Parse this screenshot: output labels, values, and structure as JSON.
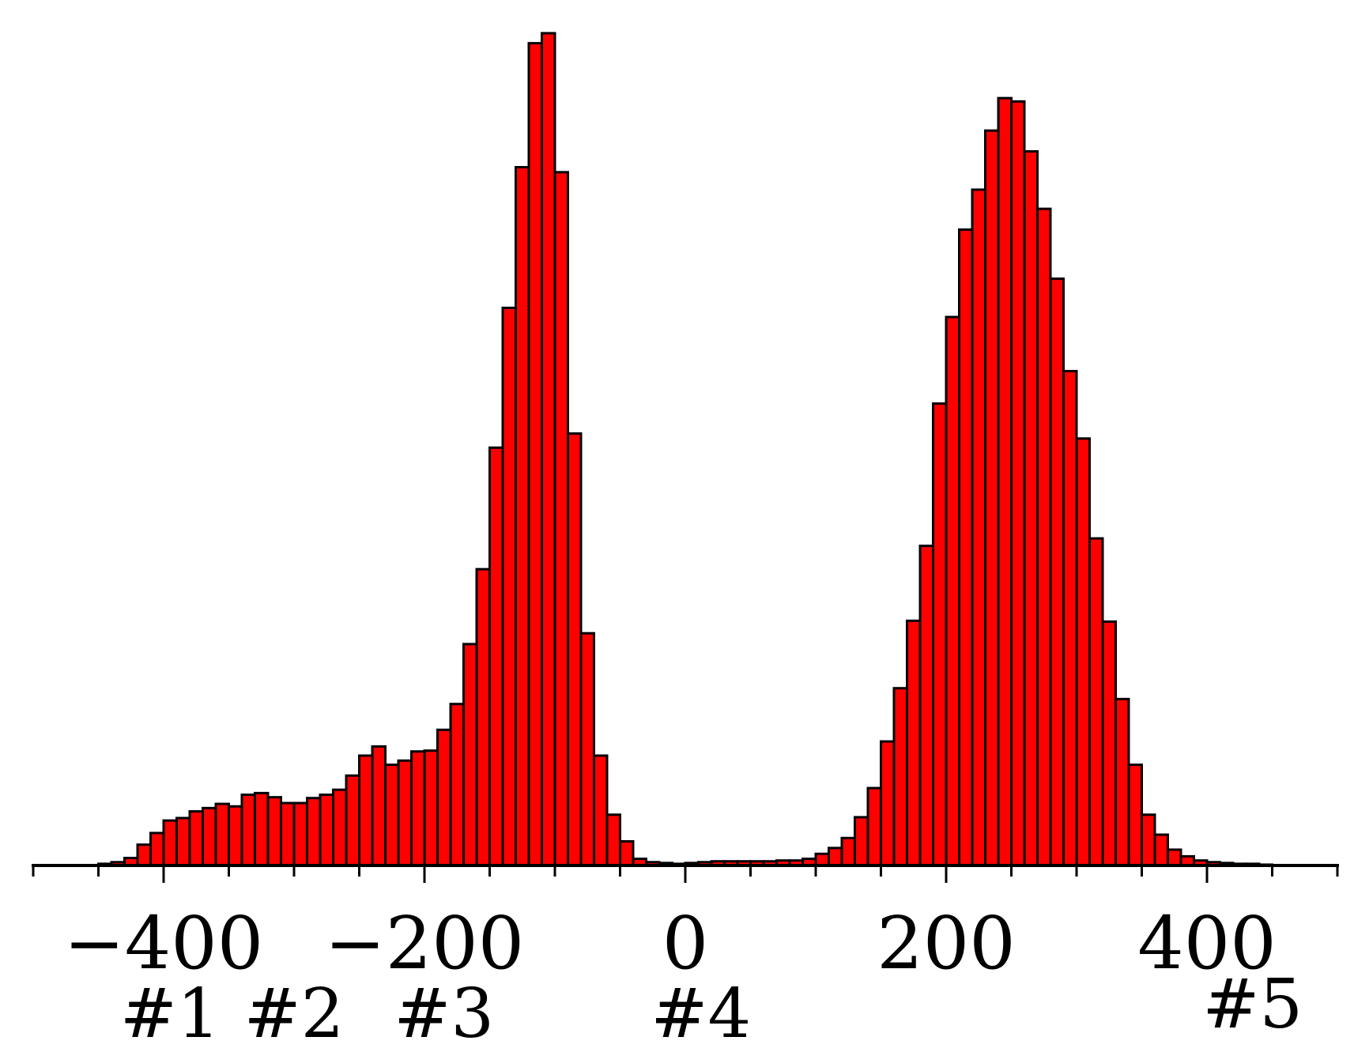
{
  "chart_data": {
    "type": "bar",
    "title": "",
    "xlabel": "",
    "ylabel": "",
    "xlim": [
      -500,
      500
    ],
    "ylim": [
      0,
      1
    ],
    "grid": false,
    "legend": "none",
    "bin_width": 10,
    "bar_color": "#ff0000",
    "edge_color": "#000000",
    "x_ticks": [
      -400,
      -200,
      0,
      200,
      400
    ],
    "x_tick_labels": [
      "−400",
      "−200",
      "0",
      "200",
      "400"
    ],
    "bin_centers": [
      -445,
      -435,
      -425,
      -415,
      -405,
      -395,
      -385,
      -375,
      -365,
      -355,
      -345,
      -335,
      -325,
      -315,
      -305,
      -295,
      -285,
      -275,
      -265,
      -255,
      -245,
      -235,
      -225,
      -215,
      -205,
      -195,
      -185,
      -175,
      -165,
      -155,
      -145,
      -135,
      -125,
      -115,
      -105,
      -95,
      -85,
      -75,
      -65,
      -55,
      -45,
      -35,
      -25,
      -15,
      -5,
      5,
      15,
      25,
      35,
      45,
      55,
      65,
      75,
      85,
      95,
      105,
      115,
      125,
      135,
      145,
      155,
      165,
      175,
      185,
      195,
      205,
      215,
      225,
      235,
      245,
      255,
      265,
      275,
      285,
      295,
      305,
      315,
      325,
      335,
      345,
      355,
      365,
      375,
      385,
      395,
      405,
      415,
      425,
      435,
      445
    ],
    "values": [
      0.002,
      0.004,
      0.009,
      0.025,
      0.039,
      0.054,
      0.057,
      0.065,
      0.069,
      0.074,
      0.071,
      0.085,
      0.087,
      0.082,
      0.075,
      0.075,
      0.081,
      0.085,
      0.091,
      0.108,
      0.132,
      0.143,
      0.121,
      0.126,
      0.137,
      0.138,
      0.163,
      0.194,
      0.266,
      0.356,
      0.502,
      0.67,
      0.839,
      0.988,
      1.0,
      0.833,
      0.519,
      0.279,
      0.132,
      0.061,
      0.029,
      0.008,
      0.004,
      0.003,
      0.002,
      0.003,
      0.004,
      0.005,
      0.005,
      0.005,
      0.005,
      0.005,
      0.006,
      0.006,
      0.008,
      0.014,
      0.021,
      0.033,
      0.058,
      0.093,
      0.149,
      0.213,
      0.294,
      0.384,
      0.555,
      0.659,
      0.764,
      0.812,
      0.883,
      0.922,
      0.918,
      0.858,
      0.789,
      0.705,
      0.594,
      0.513,
      0.393,
      0.293,
      0.2,
      0.121,
      0.061,
      0.037,
      0.019,
      0.011,
      0.006,
      0.004,
      0.003,
      0.002,
      0.002,
      0.001
    ],
    "annotations": [
      {
        "id": "1",
        "text": "#1",
        "x": -395
      },
      {
        "id": "2",
        "text": "#2",
        "x": -300
      },
      {
        "id": "3",
        "text": "#3",
        "x": -185
      },
      {
        "id": "4",
        "text": "#4",
        "x": 12
      },
      {
        "id": "5",
        "text": "#5",
        "x": 435,
        "raised": true
      }
    ]
  }
}
